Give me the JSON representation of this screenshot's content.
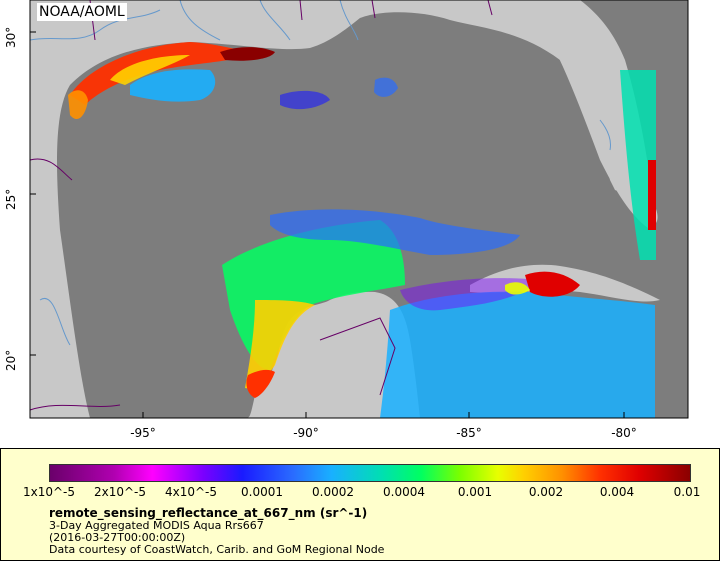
{
  "map": {
    "credit": "NOAA/AOML",
    "longitude_labels": [
      "-95°",
      "-90°",
      "-85°",
      "-80°"
    ],
    "latitude_labels": [
      "30°",
      "25°",
      "20°"
    ],
    "colors": {
      "land": "#c8c8c8",
      "ocean_no_data": "#7d7d7d",
      "rivers": "#6699cc",
      "borders": "#660066"
    }
  },
  "legend": {
    "colorbar_labels": [
      "1x10^-5",
      "2x10^-5",
      "4x10^-5",
      "0.0001",
      "0.0002",
      "0.0004",
      "0.001",
      "0.002",
      "0.004",
      "0.01"
    ],
    "title": "remote_sensing_reflectance_at_667_nm (sr^-1)",
    "line1": "3-Day Aggregated MODIS Aqua Rrs667",
    "line2": "(2016-03-27T00:00:00Z)",
    "line3": "Data courtesy of CoastWatch, Carib. and GoM Regional Node",
    "background": "#ffffcc"
  }
}
